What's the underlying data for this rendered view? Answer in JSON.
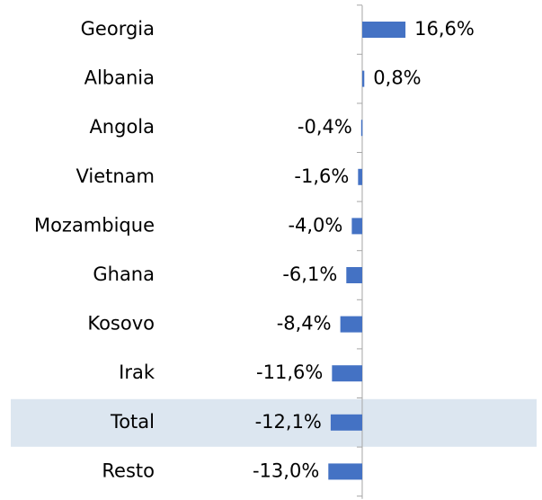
{
  "chart_data": {
    "type": "bar",
    "orientation": "horizontal",
    "categories": [
      "Georgia",
      "Albania",
      "Angola",
      "Vietnam",
      "Mozambique",
      "Ghana",
      "Kosovo",
      "Irak",
      "Total",
      "Resto"
    ],
    "values": [
      16.6,
      0.8,
      -0.4,
      -1.6,
      -4.0,
      -6.1,
      -8.4,
      -11.6,
      -12.1,
      -13.0
    ],
    "value_labels": [
      "16,6%",
      "0,8%",
      "-0,4%",
      "-1,6%",
      "-4,0%",
      "-6,1%",
      "-8,4%",
      "-11,6%",
      "-12,1%",
      "-13,0%"
    ],
    "color": "#4472c4",
    "xlim": [
      -20,
      69
    ],
    "highlight_category": "Total",
    "highlight_color": "#dce6f0"
  }
}
